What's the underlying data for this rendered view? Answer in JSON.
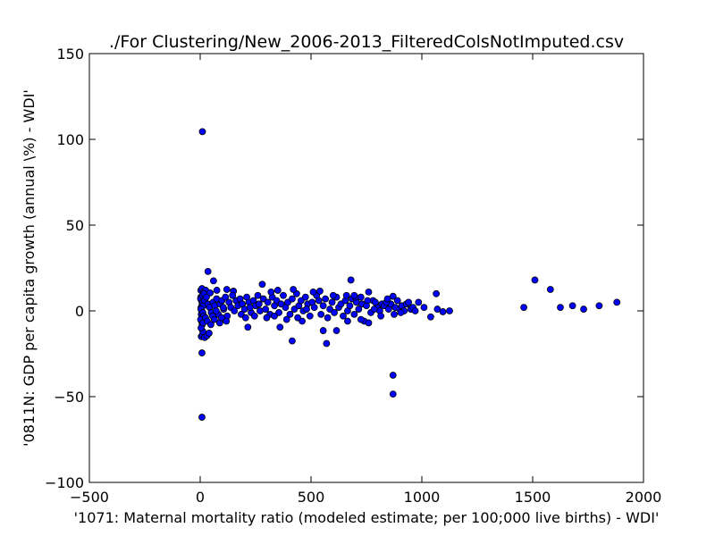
{
  "chart_data": {
    "type": "scatter",
    "title": "./For Clustering/New_2006-2013_FilteredColsNotImputed.csv",
    "xlabel": "'1071: Maternal mortality ratio  (modeled estimate; per 100;000 live births) - WDI'",
    "ylabel": "'0811N: GDP per capita growth  (annual \\%) - WDI'",
    "xlim": [
      -500,
      2000
    ],
    "ylim": [
      -100,
      150
    ],
    "xticks": [
      -500,
      0,
      500,
      1000,
      1500,
      2000
    ],
    "yticks": [
      -100,
      -50,
      0,
      50,
      100,
      150
    ],
    "xtick_labels": [
      "−500",
      "0",
      "500",
      "1000",
      "1500",
      "2000"
    ],
    "ytick_labels": [
      "−100",
      "−50",
      "0",
      "50",
      "100",
      "150"
    ],
    "grid": false,
    "marker_color": "#0000ff",
    "marker_edge": "#000000",
    "points": [
      [
        10,
        104.5
      ],
      [
        8,
        -62
      ],
      [
        8,
        -24.5
      ],
      [
        870,
        -37.5
      ],
      [
        870,
        -48.5
      ],
      [
        35,
        23
      ],
      [
        60,
        17.5
      ],
      [
        280,
        15.5
      ],
      [
        680,
        18
      ],
      [
        1510,
        18
      ],
      [
        1580,
        12.5
      ],
      [
        1460,
        2
      ],
      [
        1625,
        2
      ],
      [
        1680,
        3
      ],
      [
        1730,
        1
      ],
      [
        1800,
        3
      ],
      [
        1880,
        5
      ],
      [
        1065,
        10
      ],
      [
        1010,
        2
      ],
      [
        1040,
        -3.5
      ],
      [
        1070,
        1
      ],
      [
        1095,
        -0.5
      ],
      [
        1125,
        0
      ],
      [
        415,
        -17.5
      ],
      [
        570,
        -19
      ],
      [
        555,
        -11.5
      ],
      [
        615,
        -11.5
      ],
      [
        215,
        -9.5
      ],
      [
        360,
        -9.5
      ],
      [
        5,
        -15
      ],
      [
        10,
        -14
      ],
      [
        20,
        -15.5
      ],
      [
        30,
        -14.5
      ],
      [
        40,
        -13
      ],
      [
        12,
        -12
      ],
      [
        3,
        12
      ],
      [
        8,
        13
      ],
      [
        15,
        11
      ],
      [
        25,
        12
      ],
      [
        45,
        10.5
      ],
      [
        75,
        12
      ],
      [
        120,
        12.5
      ],
      [
        150,
        11.5
      ],
      [
        3,
        8
      ],
      [
        6,
        6
      ],
      [
        9,
        4
      ],
      [
        4,
        2
      ],
      [
        7,
        0
      ],
      [
        5,
        -2
      ],
      [
        8,
        -4
      ],
      [
        6,
        -6
      ],
      [
        9,
        -8
      ],
      [
        4,
        -10
      ],
      [
        2,
        7
      ],
      [
        11,
        5
      ],
      [
        14,
        3
      ],
      [
        3,
        1
      ],
      [
        12,
        -1
      ],
      [
        16,
        -3
      ],
      [
        2,
        -5
      ],
      [
        13,
        -7
      ],
      [
        11,
        9
      ],
      [
        17,
        10
      ],
      [
        20,
        6
      ],
      [
        28,
        8
      ],
      [
        35,
        4
      ],
      [
        42,
        2
      ],
      [
        50,
        -1
      ],
      [
        58,
        5
      ],
      [
        66,
        3
      ],
      [
        74,
        7
      ],
      [
        82,
        -2
      ],
      [
        90,
        4
      ],
      [
        98,
        6
      ],
      [
        106,
        1
      ],
      [
        114,
        8
      ],
      [
        122,
        -3
      ],
      [
        130,
        5
      ],
      [
        138,
        2
      ],
      [
        146,
        9
      ],
      [
        154,
        0
      ],
      [
        162,
        6
      ],
      [
        170,
        3
      ],
      [
        24,
        -4
      ],
      [
        32,
        -6
      ],
      [
        48,
        -8
      ],
      [
        56,
        -3
      ],
      [
        64,
        -5
      ],
      [
        72,
        0
      ],
      [
        88,
        -7
      ],
      [
        96,
        -4
      ],
      [
        104,
        2
      ],
      [
        118,
        -6
      ],
      [
        180,
        7
      ],
      [
        190,
        4
      ],
      [
        200,
        1
      ],
      [
        210,
        8
      ],
      [
        220,
        5
      ],
      [
        230,
        -1
      ],
      [
        240,
        6
      ],
      [
        250,
        3
      ],
      [
        260,
        9
      ],
      [
        270,
        0
      ],
      [
        185,
        -2
      ],
      [
        205,
        -4
      ],
      [
        225,
        2
      ],
      [
        245,
        -3
      ],
      [
        265,
        4
      ],
      [
        285,
        7
      ],
      [
        295,
        1
      ],
      [
        305,
        5
      ],
      [
        315,
        -2
      ],
      [
        325,
        8
      ],
      [
        335,
        3
      ],
      [
        345,
        6
      ],
      [
        355,
        -1
      ],
      [
        365,
        4
      ],
      [
        375,
        9
      ],
      [
        385,
        2
      ],
      [
        395,
        5
      ],
      [
        405,
        -2
      ],
      [
        415,
        7
      ],
      [
        425,
        1
      ],
      [
        435,
        10
      ],
      [
        445,
        3
      ],
      [
        455,
        6
      ],
      [
        465,
        0
      ],
      [
        475,
        8
      ],
      [
        485,
        4
      ],
      [
        495,
        -3
      ],
      [
        505,
        5
      ],
      [
        515,
        2
      ],
      [
        525,
        9
      ],
      [
        335,
        -3
      ],
      [
        350,
        12
      ],
      [
        420,
        12.5
      ],
      [
        390,
        -5
      ],
      [
        460,
        -6
      ],
      [
        480,
        1
      ],
      [
        300,
        -4
      ],
      [
        320,
        11
      ],
      [
        440,
        -4
      ],
      [
        510,
        11
      ],
      [
        535,
        6
      ],
      [
        545,
        -2
      ],
      [
        555,
        3
      ],
      [
        565,
        7
      ],
      [
        575,
        -4
      ],
      [
        585,
        1
      ],
      [
        595,
        5
      ],
      [
        605,
        -1
      ],
      [
        615,
        8
      ],
      [
        625,
        2
      ],
      [
        635,
        4
      ],
      [
        645,
        -3
      ],
      [
        655,
        6
      ],
      [
        665,
        0
      ],
      [
        675,
        3
      ],
      [
        685,
        7
      ],
      [
        695,
        -2
      ],
      [
        705,
        5
      ],
      [
        715,
        1
      ],
      [
        725,
        8
      ],
      [
        540,
        11.5
      ],
      [
        600,
        9
      ],
      [
        660,
        9
      ],
      [
        700,
        8
      ],
      [
        730,
        4
      ],
      [
        740,
        -6
      ],
      [
        760,
        -7
      ],
      [
        780,
        6
      ],
      [
        800,
        2
      ],
      [
        820,
        4
      ],
      [
        750,
        3
      ],
      [
        770,
        -1
      ],
      [
        790,
        5
      ],
      [
        810,
        0
      ],
      [
        830,
        3
      ],
      [
        850,
        1
      ],
      [
        860,
        4
      ],
      [
        880,
        2
      ],
      [
        890,
        6
      ],
      [
        900,
        1
      ],
      [
        760,
        11
      ],
      [
        840,
        5
      ],
      [
        870,
        8.5
      ],
      [
        910,
        3
      ],
      [
        920,
        0
      ],
      [
        930,
        4
      ],
      [
        950,
        1
      ],
      [
        960,
        2
      ],
      [
        970,
        0
      ],
      [
        985,
        5
      ],
      [
        940,
        5
      ],
      [
        905,
        -1
      ],
      [
        875,
        -2
      ],
      [
        845,
        7
      ],
      [
        815,
        -3
      ],
      [
        785,
        1
      ],
      [
        755,
        6
      ],
      [
        725,
        -5
      ],
      [
        695,
        9
      ],
      [
        665,
        -6
      ]
    ]
  }
}
